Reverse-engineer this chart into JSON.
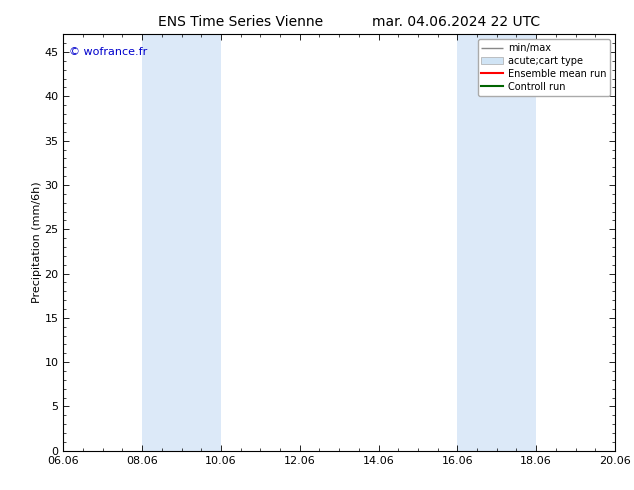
{
  "title_left": "ENS Time Series Vienne",
  "title_right": "mar. 04.06.2024 22 UTC",
  "ylabel": "Precipitation (mm/6h)",
  "xlabel": "",
  "ylim": [
    0,
    47
  ],
  "yticks": [
    0,
    5,
    10,
    15,
    20,
    25,
    30,
    35,
    40,
    45
  ],
  "xtick_labels": [
    "06.06",
    "08.06",
    "10.06",
    "12.06",
    "14.06",
    "16.06",
    "18.06",
    "20.06"
  ],
  "xtick_positions": [
    0,
    2,
    4,
    6,
    8,
    10,
    12,
    14
  ],
  "xlim": [
    0,
    14
  ],
  "background_color": "#ffffff",
  "plot_bg_color": "#ffffff",
  "shaded_regions": [
    {
      "x_start": 2.0,
      "x_end": 3.0,
      "color": "#dce9f8"
    },
    {
      "x_start": 3.0,
      "x_end": 4.0,
      "color": "#dce9f8"
    },
    {
      "x_start": 10.0,
      "x_end": 11.0,
      "color": "#dce9f8"
    },
    {
      "x_start": 11.0,
      "x_end": 12.0,
      "color": "#dce9f8"
    }
  ],
  "watermark_text": "© wofrance.fr",
  "watermark_color": "#0000cc",
  "legend_entries": [
    {
      "label": "min/max",
      "color": "#999999",
      "lw": 1,
      "type": "errorbar"
    },
    {
      "label": "acute;cart type",
      "color": "#d0e4f5",
      "lw": 8,
      "type": "bar"
    },
    {
      "label": "Ensemble mean run",
      "color": "#ff0000",
      "lw": 1.5,
      "type": "line"
    },
    {
      "label": "Controll run",
      "color": "#006400",
      "lw": 1.5,
      "type": "line"
    }
  ],
  "title_fontsize": 10,
  "tick_fontsize": 8,
  "label_fontsize": 8,
  "minor_tick_count": 3
}
